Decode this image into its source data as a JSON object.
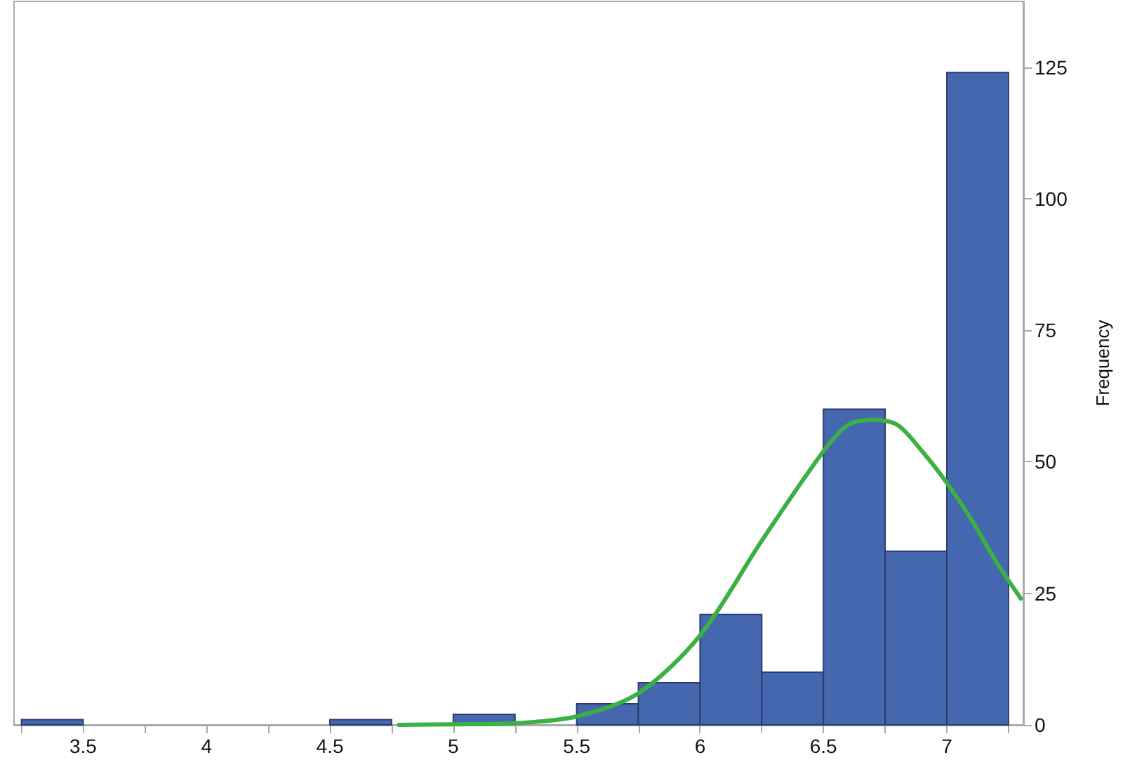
{
  "chart_data": {
    "type": "histogram",
    "ylabel": "Frequency",
    "color": "#4567b0",
    "bins": [
      3.25,
      3.5,
      3.75,
      4,
      4.25,
      4.5,
      4.75,
      5,
      5.25,
      5.5,
      5.75,
      6,
      6.25,
      6.5,
      6.75,
      7,
      7.25
    ],
    "values": [
      1,
      0,
      0,
      0,
      0,
      1,
      0,
      2,
      0,
      4,
      8,
      21,
      10,
      60,
      33,
      124
    ],
    "series": [
      {
        "type": "line",
        "color": "#3cb043",
        "x": [
          4.78,
          5.0,
          5.25,
          5.5,
          5.75,
          6.0,
          6.25,
          6.5,
          6.6,
          6.7,
          6.8,
          6.9,
          7.0,
          7.1,
          7.2,
          7.3
        ],
        "values": [
          0,
          0.1,
          0.3,
          1.6,
          6,
          17,
          35,
          52,
          57,
          58,
          57,
          52,
          46,
          39,
          31,
          24
        ]
      }
    ],
    "xlim": [
      3.22,
      7.31
    ],
    "xticks": [
      {
        "value": 3.25,
        "label": null
      },
      3.5,
      {
        "value": 3.75,
        "label": null
      },
      4,
      {
        "value": 4.25,
        "label": null
      },
      4.5,
      {
        "value": 4.75,
        "label": null
      },
      5,
      {
        "value": 5.25,
        "label": null
      },
      5.5,
      {
        "value": 5.75,
        "label": null
      },
      6,
      {
        "value": 6.25,
        "label": null
      },
      6.5,
      {
        "value": 6.75,
        "label": null
      },
      7,
      {
        "value": 7.25,
        "label": null
      }
    ],
    "ylim": [
      0,
      137.5
    ],
    "yticks": [
      0,
      25,
      50,
      75,
      100,
      125
    ],
    "grid": false,
    "marker": "none",
    "line_style": "solid"
  }
}
